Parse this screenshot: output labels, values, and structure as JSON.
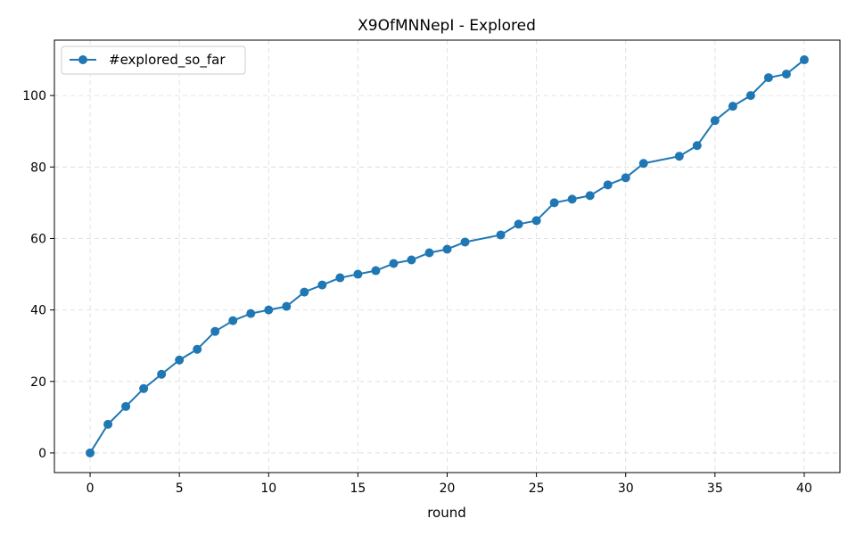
{
  "chart_data": {
    "type": "line",
    "title": "X9OfMNNepI - Explored",
    "xlabel": "round",
    "ylabel": "",
    "xlim": [
      -2,
      42
    ],
    "ylim": [
      -5.5,
      115.5
    ],
    "xticks": [
      0,
      5,
      10,
      15,
      20,
      25,
      30,
      35,
      40
    ],
    "yticks": [
      0,
      20,
      40,
      60,
      80,
      100
    ],
    "grid": true,
    "legend_position": "top-left",
    "series": [
      {
        "name": "#explored_so_far",
        "color": "#1f77b4",
        "marker": "circle",
        "x": [
          0,
          1,
          2,
          3,
          4,
          5,
          6,
          7,
          8,
          9,
          10,
          11,
          12,
          13,
          14,
          15,
          16,
          17,
          18,
          19,
          20,
          21,
          23,
          24,
          25,
          26,
          27,
          28,
          29,
          30,
          31,
          33,
          34,
          35,
          36,
          37,
          38,
          39,
          40
        ],
        "y": [
          0,
          8,
          13,
          18,
          22,
          26,
          29,
          34,
          37,
          39,
          40,
          41,
          45,
          47,
          49,
          50,
          51,
          53,
          54,
          56,
          57,
          59,
          61,
          64,
          65,
          70,
          71,
          72,
          75,
          77,
          81,
          83,
          86,
          93,
          97,
          100,
          105,
          106,
          110
        ]
      }
    ]
  }
}
